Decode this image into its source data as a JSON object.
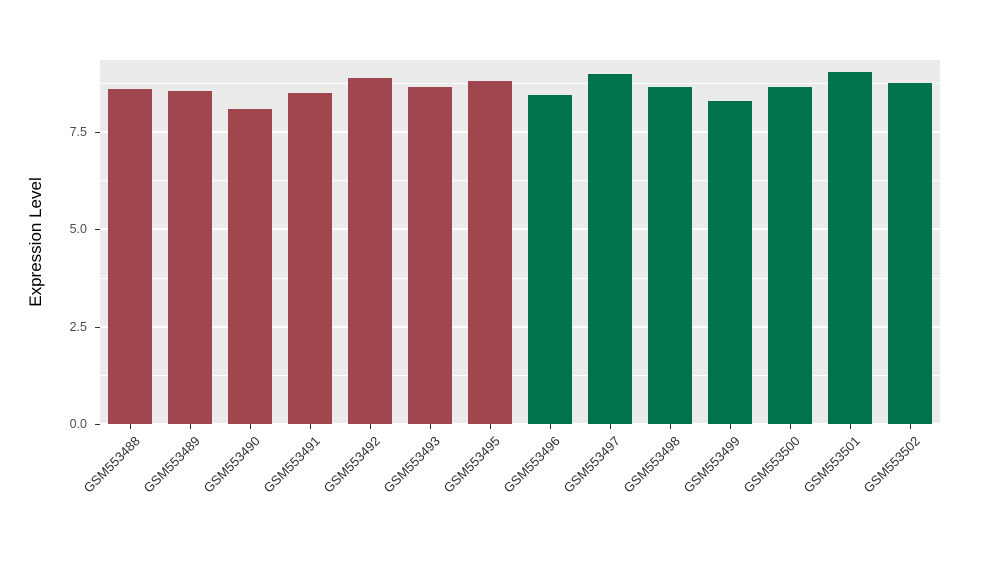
{
  "chart_data": {
    "type": "bar",
    "title": "",
    "xlabel": "",
    "ylabel": "Expression Level",
    "categories": [
      "GSM553488",
      "GSM553489",
      "GSM553490",
      "GSM553491",
      "GSM553492",
      "GSM553493",
      "GSM553495",
      "GSM553496",
      "GSM553497",
      "GSM553498",
      "GSM553499",
      "GSM553500",
      "GSM553501",
      "GSM553502"
    ],
    "values": [
      8.6,
      8.55,
      8.1,
      8.5,
      8.9,
      8.65,
      8.8,
      8.45,
      9.0,
      8.65,
      8.3,
      8.65,
      9.05,
      8.75
    ],
    "group_colors": [
      "#A0464F",
      "#00724E"
    ],
    "color_split_index": 7,
    "ylim": [
      0,
      9.35
    ],
    "yticks": [
      {
        "value": 0,
        "label": "0.0"
      },
      {
        "value": 2.5,
        "label": "2.5"
      },
      {
        "value": 5,
        "label": "5.0"
      },
      {
        "value": 7.5,
        "label": "7.5"
      }
    ],
    "minor_gridlines": [
      1.25,
      3.75,
      6.25,
      8.75
    ],
    "panel_background": "#EBEBEB",
    "gridline_color": "#FFFFFF",
    "grid": true,
    "legend": "none"
  }
}
